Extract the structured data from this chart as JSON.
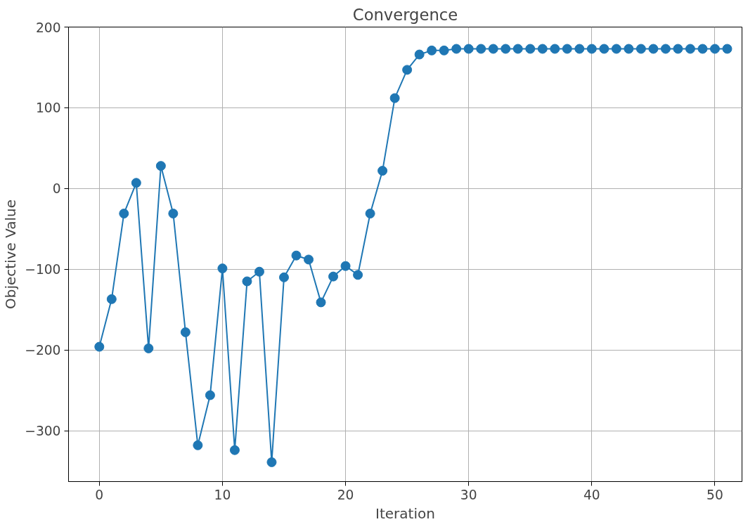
{
  "chart_data": {
    "type": "line",
    "title": "Convergence",
    "xlabel": "Iteration",
    "ylabel": "Objective Value",
    "x": [
      0,
      1,
      2,
      3,
      4,
      5,
      6,
      7,
      8,
      9,
      10,
      11,
      12,
      13,
      14,
      15,
      16,
      17,
      18,
      19,
      20,
      21,
      22,
      23,
      24,
      25,
      26,
      27,
      28,
      29,
      30,
      31,
      32,
      33,
      34,
      35,
      36,
      37,
      38,
      39,
      40,
      41,
      42,
      43,
      44,
      45,
      46,
      47,
      48,
      49,
      50,
      51
    ],
    "series": [
      {
        "color": "#1f77b4",
        "values": [
          -196,
          -137,
          -31,
          7,
          -198,
          28,
          -31,
          -178,
          -318,
          -256,
          -99,
          -324,
          -115,
          -103,
          -339,
          -110,
          -83,
          -88,
          -141,
          -109,
          -96,
          -107,
          -31,
          22,
          112,
          147,
          166,
          171,
          171,
          173,
          173,
          173,
          173,
          173,
          173,
          173,
          173,
          173,
          173,
          173,
          173,
          173,
          173,
          173,
          173,
          173,
          173,
          173,
          173,
          173,
          173,
          173
        ]
      }
    ],
    "xlim": [
      -2.5,
      52.2
    ],
    "ylim": [
      -363,
      200
    ],
    "xticks": [
      0,
      10,
      20,
      30,
      40,
      50
    ],
    "yticks": [
      -300,
      -200,
      -100,
      0,
      100,
      200
    ],
    "grid": true,
    "marker": "circle",
    "line_style": "solid"
  }
}
